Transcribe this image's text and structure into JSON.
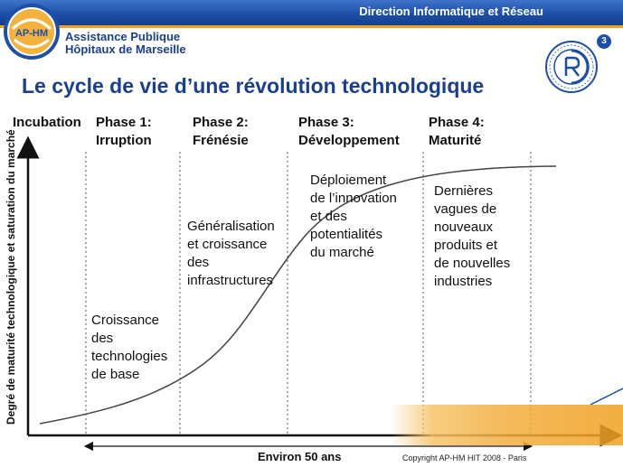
{
  "header": {
    "title": "Direction Informatique et Réseau",
    "page_number": "3",
    "org_line1": "Assistance Publique",
    "org_line2": "Hôpitaux de Marseille",
    "logo_text": "AP-HM",
    "brand_color": "#1d4fa8",
    "accent_color": "#f0a020"
  },
  "title": "Le cycle de vie d’une révolution technologique",
  "diagram": {
    "y_axis_label": "Degré de maturité technologique et saturation du marché",
    "x_axis_label": "Environ 50 ans",
    "phases": [
      {
        "label_line1": "Incubation",
        "label_line2": ""
      },
      {
        "label_line1": "Phase 1:",
        "label_line2": "Irruption",
        "desc": [
          "Croissance",
          "des",
          "technologies",
          "de base"
        ]
      },
      {
        "label_line1": "Phase 2:",
        "label_line2": "Frénésie",
        "desc": [
          "Généralisation",
          "et croissance",
          "des",
          "infrastructures"
        ]
      },
      {
        "label_line1": "Phase 3:",
        "label_line2": "Développement",
        "desc": [
          "Déploiement",
          "de l’innovation",
          "et des",
          "potentialités",
          "du marché"
        ]
      },
      {
        "label_line1": "Phase 4:",
        "label_line2": "Maturité",
        "desc": [
          "Dernières",
          "vagues de",
          "nouveaux",
          "produits et",
          "de nouvelles",
          "industries"
        ]
      }
    ]
  },
  "footer": {
    "copyright": "Copyright AP-HM   HIT  2008 - Paris"
  }
}
